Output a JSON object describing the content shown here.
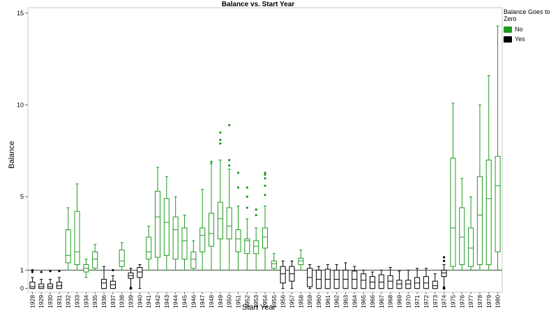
{
  "chart_data": {
    "type": "box",
    "title": "Balance vs. Start Year",
    "xlabel": "Start Year",
    "ylabel": "Balance",
    "y_ticks": [
      0,
      1,
      5,
      10,
      15
    ],
    "ylim": [
      -0.2,
      15.3
    ],
    "reference_line": 1,
    "legend": {
      "title": "Balance Goes to Zero",
      "entries": [
        {
          "label": "No",
          "color": "#1f9a1f"
        },
        {
          "label": "Yes",
          "color": "#000000"
        }
      ]
    },
    "boxes": [
      {
        "year": "1928",
        "group": "Yes",
        "min": 0.0,
        "q1": 0.0,
        "median": 0.1,
        "q3": 0.35,
        "max": 0.6,
        "outliers": [
          0.9,
          1.0
        ]
      },
      {
        "year": "1929",
        "group": "Yes",
        "min": 0.0,
        "q1": 0.0,
        "median": 0.1,
        "q3": 0.25,
        "max": 0.5,
        "outliers": [
          0.9
        ]
      },
      {
        "year": "1930",
        "group": "Yes",
        "min": 0.0,
        "q1": 0.0,
        "median": 0.1,
        "q3": 0.25,
        "max": 0.5,
        "outliers": [
          0.95
        ]
      },
      {
        "year": "1931",
        "group": "Yes",
        "min": 0.0,
        "q1": 0.0,
        "median": 0.15,
        "q3": 0.35,
        "max": 0.6,
        "outliers": [
          0.95
        ]
      },
      {
        "year": "1932",
        "group": "No",
        "min": 1.0,
        "q1": 1.4,
        "median": 1.8,
        "q3": 3.2,
        "max": 4.4,
        "outliers": []
      },
      {
        "year": "1933",
        "group": "No",
        "min": 1.0,
        "q1": 1.3,
        "median": 2.0,
        "q3": 4.2,
        "max": 5.7,
        "outliers": []
      },
      {
        "year": "1934",
        "group": "No",
        "min": 0.6,
        "q1": 0.9,
        "median": 1.1,
        "q3": 1.3,
        "max": 1.6,
        "outliers": []
      },
      {
        "year": "1935",
        "group": "No",
        "min": 1.0,
        "q1": 1.1,
        "median": 1.6,
        "q3": 2.0,
        "max": 2.4,
        "outliers": []
      },
      {
        "year": "1936",
        "group": "Yes",
        "min": 0.0,
        "q1": 0.0,
        "median": 0.3,
        "q3": 0.5,
        "max": 1.2,
        "outliers": []
      },
      {
        "year": "1937",
        "group": "Yes",
        "min": 0.0,
        "q1": 0.0,
        "median": 0.2,
        "q3": 0.4,
        "max": 0.7,
        "outliers": [
          1.0
        ]
      },
      {
        "year": "1938",
        "group": "No",
        "min": 1.0,
        "q1": 1.2,
        "median": 1.5,
        "q3": 2.1,
        "max": 2.5,
        "outliers": []
      },
      {
        "year": "1939",
        "group": "Yes",
        "min": 0.0,
        "q1": 0.55,
        "median": 0.7,
        "q3": 0.85,
        "max": 1.1,
        "outliers": [
          0.0,
          0.02,
          0.05
        ]
      },
      {
        "year": "1940",
        "group": "Yes",
        "min": 0.0,
        "q1": 0.6,
        "median": 0.9,
        "q3": 1.15,
        "max": 1.3,
        "outliers": []
      },
      {
        "year": "1941",
        "group": "No",
        "min": 1.0,
        "q1": 1.6,
        "median": 2.0,
        "q3": 2.8,
        "max": 3.4,
        "outliers": []
      },
      {
        "year": "1942",
        "group": "No",
        "min": 1.0,
        "q1": 1.7,
        "median": 3.9,
        "q3": 5.3,
        "max": 6.6,
        "outliers": []
      },
      {
        "year": "1943",
        "group": "No",
        "min": 1.0,
        "q1": 1.8,
        "median": 3.6,
        "q3": 4.9,
        "max": 6.1,
        "outliers": []
      },
      {
        "year": "1944",
        "group": "No",
        "min": 1.0,
        "q1": 1.6,
        "median": 3.2,
        "q3": 3.9,
        "max": 5.0,
        "outliers": []
      },
      {
        "year": "1945",
        "group": "No",
        "min": 1.0,
        "q1": 1.6,
        "median": 2.6,
        "q3": 3.3,
        "max": 4.0,
        "outliers": []
      },
      {
        "year": "1946",
        "group": "No",
        "min": 1.0,
        "q1": 1.1,
        "median": 1.6,
        "q3": 2.0,
        "max": 2.6,
        "outliers": []
      },
      {
        "year": "1947",
        "group": "No",
        "min": 1.0,
        "q1": 2.0,
        "median": 2.9,
        "q3": 3.3,
        "max": 5.4,
        "outliers": []
      },
      {
        "year": "1948",
        "group": "No",
        "min": 1.0,
        "q1": 2.3,
        "median": 3.0,
        "q3": 4.1,
        "max": 6.8,
        "outliers": [
          6.9
        ]
      },
      {
        "year": "1949",
        "group": "No",
        "min": 1.0,
        "q1": 2.7,
        "median": 3.8,
        "q3": 4.7,
        "max": 7.0,
        "outliers": [
          7.9,
          8.1,
          8.5
        ]
      },
      {
        "year": "1950",
        "group": "No",
        "min": 1.0,
        "q1": 2.7,
        "median": 3.4,
        "q3": 4.4,
        "max": 6.5,
        "outliers": [
          6.7,
          7.0,
          8.9
        ]
      },
      {
        "year": "1951",
        "group": "No",
        "min": 1.0,
        "q1": 2.0,
        "median": 2.7,
        "q3": 3.2,
        "max": 4.5,
        "outliers": [
          5.5,
          6.3
        ]
      },
      {
        "year": "1952",
        "group": "No",
        "min": 1.0,
        "q1": 1.9,
        "median": 2.6,
        "q3": 2.7,
        "max": 3.8,
        "outliers": [
          4.4,
          5.0,
          5.5
        ]
      },
      {
        "year": "1953",
        "group": "No",
        "min": 1.0,
        "q1": 1.9,
        "median": 2.3,
        "q3": 2.6,
        "max": 3.3,
        "outliers": [
          4.0,
          4.3,
          4.3
        ]
      },
      {
        "year": "1954",
        "group": "No",
        "min": 1.0,
        "q1": 2.2,
        "median": 2.8,
        "q3": 3.3,
        "max": 4.5,
        "outliers": [
          5.1,
          5.6,
          6.0,
          6.2,
          6.3
        ]
      },
      {
        "year": "1955",
        "group": "No",
        "min": 1.0,
        "q1": 1.1,
        "median": 1.35,
        "q3": 1.5,
        "max": 1.9,
        "outliers": []
      },
      {
        "year": "1956",
        "group": "Yes",
        "min": 0.0,
        "q1": 0.3,
        "median": 0.8,
        "q3": 1.2,
        "max": 1.5,
        "outliers": []
      },
      {
        "year": "1957",
        "group": "Yes",
        "min": 0.0,
        "q1": 0.4,
        "median": 0.8,
        "q3": 1.2,
        "max": 1.5,
        "outliers": []
      },
      {
        "year": "1958",
        "group": "No",
        "min": 1.0,
        "q1": 1.3,
        "median": 1.5,
        "q3": 1.65,
        "max": 2.1,
        "outliers": []
      },
      {
        "year": "1959",
        "group": "Yes",
        "min": 0.0,
        "q1": 0.1,
        "median": 0.6,
        "q3": 1.1,
        "max": 1.3,
        "outliers": []
      },
      {
        "year": "1960",
        "group": "Yes",
        "min": 0.0,
        "q1": 0.0,
        "median": 0.5,
        "q3": 1.0,
        "max": 1.2,
        "outliers": []
      },
      {
        "year": "1961",
        "group": "Yes",
        "min": 0.0,
        "q1": 0.0,
        "median": 0.5,
        "q3": 1.05,
        "max": 1.3,
        "outliers": []
      },
      {
        "year": "1962",
        "group": "Yes",
        "min": 0.0,
        "q1": 0.0,
        "median": 0.5,
        "q3": 1.0,
        "max": 1.3,
        "outliers": []
      },
      {
        "year": "1963",
        "group": "Yes",
        "min": 0.0,
        "q1": 0.0,
        "median": 0.5,
        "q3": 1.0,
        "max": 1.4,
        "outliers": []
      },
      {
        "year": "1964",
        "group": "Yes",
        "min": 0.0,
        "q1": 0.0,
        "median": 0.5,
        "q3": 0.95,
        "max": 1.2,
        "outliers": []
      },
      {
        "year": "1965",
        "group": "Yes",
        "min": 0.0,
        "q1": 0.0,
        "median": 0.45,
        "q3": 0.8,
        "max": 1.0,
        "outliers": []
      },
      {
        "year": "1966",
        "group": "Yes",
        "min": 0.0,
        "q1": 0.0,
        "median": 0.35,
        "q3": 0.65,
        "max": 0.9,
        "outliers": []
      },
      {
        "year": "1967",
        "group": "Yes",
        "min": 0.0,
        "q1": 0.0,
        "median": 0.35,
        "q3": 0.75,
        "max": 1.0,
        "outliers": []
      },
      {
        "year": "1968",
        "group": "Yes",
        "min": 0.0,
        "q1": 0.0,
        "median": 0.4,
        "q3": 0.7,
        "max": 1.15,
        "outliers": []
      },
      {
        "year": "1969",
        "group": "Yes",
        "min": 0.0,
        "q1": 0.0,
        "median": 0.25,
        "q3": 0.45,
        "max": 0.95,
        "outliers": []
      },
      {
        "year": "1970",
        "group": "Yes",
        "min": 0.0,
        "q1": 0.0,
        "median": 0.25,
        "q3": 0.45,
        "max": 1.0,
        "outliers": []
      },
      {
        "year": "1971",
        "group": "Yes",
        "min": 0.0,
        "q1": 0.0,
        "median": 0.3,
        "q3": 0.6,
        "max": 1.1,
        "outliers": []
      },
      {
        "year": "1972",
        "group": "Yes",
        "min": 0.0,
        "q1": 0.0,
        "median": 0.3,
        "q3": 0.65,
        "max": 1.1,
        "outliers": []
      },
      {
        "year": "1973",
        "group": "Yes",
        "min": 0.0,
        "q1": 0.0,
        "median": 0.15,
        "q3": 0.4,
        "max": 0.8,
        "outliers": []
      },
      {
        "year": "1974",
        "group": "Yes",
        "min": 0.0,
        "q1": 0.65,
        "median": 0.85,
        "q3": 1.0,
        "max": 1.3,
        "outliers": [
          0.0,
          0.03,
          0.06,
          1.5,
          1.7
        ]
      },
      {
        "year": "1975",
        "group": "No",
        "min": 1.0,
        "q1": 1.2,
        "median": 3.3,
        "q3": 7.1,
        "max": 10.1,
        "outliers": []
      },
      {
        "year": "1976",
        "group": "No",
        "min": 1.0,
        "q1": 1.3,
        "median": 2.8,
        "q3": 4.4,
        "max": 6.0,
        "outliers": []
      },
      {
        "year": "1977",
        "group": "No",
        "min": 1.0,
        "q1": 1.2,
        "median": 2.2,
        "q3": 3.3,
        "max": 5.0,
        "outliers": []
      },
      {
        "year": "1978",
        "group": "No",
        "min": 1.0,
        "q1": 1.3,
        "median": 4.0,
        "q3": 6.1,
        "max": 10.0,
        "outliers": []
      },
      {
        "year": "1979",
        "group": "No",
        "min": 1.0,
        "q1": 1.3,
        "median": 4.9,
        "q3": 7.0,
        "max": 11.6,
        "outliers": []
      },
      {
        "year": "1980",
        "group": "No",
        "min": 1.0,
        "q1": 2.0,
        "median": 5.6,
        "q3": 7.2,
        "max": 14.3,
        "outliers": []
      }
    ]
  }
}
